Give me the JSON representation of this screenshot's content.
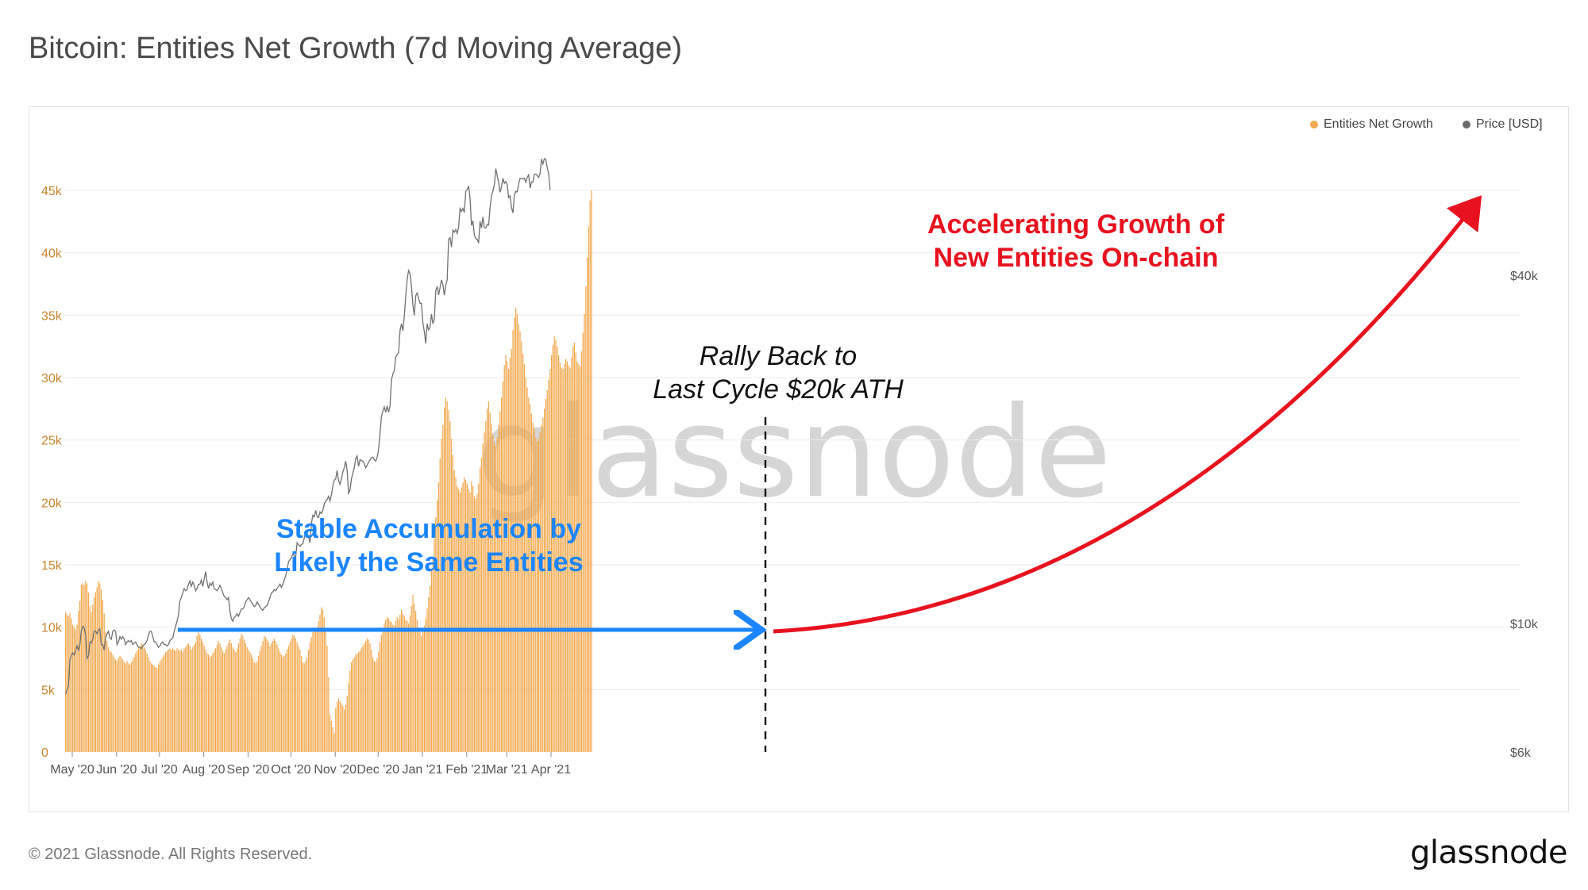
{
  "title": "Bitcoin: Entities Net Growth (7d Moving Average)",
  "footer": "© 2021 Glassnode. All Rights Reserved.",
  "logo": "glassnode",
  "watermark": "glassnode",
  "legend": [
    {
      "label": "Entities Net Growth",
      "color": "#f2a84c"
    },
    {
      "label": "Price [USD]",
      "color": "#6b6b6b"
    }
  ],
  "annotations": {
    "stable_line1": "Stable Accumulation by",
    "stable_line2": "Likely the Same Entities",
    "rally_line1": "Rally Back to",
    "rally_line2": "Last Cycle $20k ATH",
    "accel_line1": "Accelerating Growth of",
    "accel_line2": "New Entities On-chain"
  },
  "colors": {
    "bar": "#f2a84c",
    "price": "#6b6b6b",
    "blue": "#1a85ff",
    "red": "#e8121f",
    "left_axis": "#c9852e",
    "right_axis": "#555555"
  },
  "chart_data": {
    "type": "bar",
    "title": "Bitcoin: Entities Net Growth (7d Moving Average)",
    "x_ticks": [
      "May '20",
      "Jun '20",
      "Jul '20",
      "Aug '20",
      "Sep '20",
      "Oct '20",
      "Nov '20",
      "Dec '20",
      "Jan '21",
      "Feb '21",
      "Mar '21",
      "Apr '21"
    ],
    "x_tick_day": [
      5,
      36,
      66,
      97,
      128,
      158,
      189,
      219,
      250,
      281,
      309,
      340
    ],
    "left_axis": {
      "ticks": [
        "0",
        "5k",
        "10k",
        "15k",
        "20k",
        "25k",
        "30k",
        "35k",
        "40k",
        "45k"
      ],
      "ylim": [
        0,
        45000
      ]
    },
    "right_axis": {
      "ticks": [
        "$6k",
        "$10k",
        "$40k"
      ],
      "values": [
        6000,
        10000,
        40000
      ],
      "scale": "log"
    },
    "series": [
      {
        "name": "Entities Net Growth",
        "start_date": "2020-04-26",
        "values": [
          11200,
          11000,
          10900,
          11100,
          10700,
          10200,
          10000,
          9800,
          10200,
          11300,
          12100,
          13400,
          13500,
          13400,
          13700,
          13500,
          12800,
          11700,
          11200,
          11800,
          12400,
          12800,
          13200,
          13700,
          13500,
          13000,
          12200,
          11100,
          9600,
          8900,
          8400,
          8100,
          8000,
          7800,
          7600,
          7400,
          7300,
          7500,
          7700,
          7600,
          7400,
          7200,
          7100,
          7300,
          7100,
          7000,
          7200,
          7400,
          7600,
          7900,
          8100,
          8300,
          8500,
          8700,
          8600,
          8400,
          8200,
          7900,
          7600,
          7300,
          7100,
          7000,
          6900,
          6800,
          6700,
          7000,
          7200,
          7400,
          7600,
          7800,
          8000,
          8100,
          8200,
          8300,
          8200,
          8300,
          8200,
          8100,
          8300,
          8200,
          8100,
          8200,
          8000,
          8300,
          8400,
          8600,
          8700,
          8500,
          8200,
          8400,
          8600,
          8800,
          9300,
          9600,
          9400,
          9100,
          8800,
          8500,
          8200,
          7900,
          7800,
          7600,
          7700,
          7900,
          8100,
          8300,
          8600,
          8900,
          8700,
          8400,
          8100,
          7900,
          8200,
          8500,
          8800,
          9000,
          8700,
          8400,
          8200,
          8000,
          8300,
          8700,
          9100,
          9500,
          9300,
          9000,
          8700,
          8400,
          8200,
          8000,
          7800,
          7500,
          7200,
          7100,
          7300,
          7700,
          8100,
          8500,
          8900,
          9300,
          9200,
          9000,
          8800,
          8500,
          8700,
          8900,
          9100,
          8900,
          8600,
          8300,
          8000,
          7800,
          7600,
          7700,
          7900,
          8200,
          8500,
          8800,
          9100,
          9400,
          9300,
          9100,
          8800,
          8500,
          8200,
          7700,
          7200,
          7100,
          7300,
          7600,
          8200,
          8800,
          9200,
          9600,
          9700,
          9800,
          10000,
          10500,
          11000,
          11600,
          11400,
          10800,
          9900,
          8500,
          6000,
          3000,
          2500,
          2000,
          1500,
          3500,
          4000,
          4300,
          4100,
          3900,
          3700,
          3400,
          3800,
          4500,
          5500,
          6500,
          7200,
          7400,
          7600,
          7800,
          7900,
          8000,
          8100,
          8300,
          8500,
          8700,
          8900,
          9100,
          9000,
          8700,
          8200,
          7600,
          7300,
          7200,
          7500,
          8000,
          8800,
          9400,
          9800,
          10300,
          10600,
          10800,
          10700,
          10500,
          10400,
          10200,
          10100,
          10500,
          10800,
          10600,
          11000,
          11400,
          11100,
          10900,
          10600,
          10500,
          10300,
          10900,
          11700,
          12600,
          11900,
          11300,
          10600,
          10000,
          9600,
          9300,
          9600,
          10100,
          10700,
          11500,
          12400,
          13300,
          14500,
          15600,
          17100,
          18800,
          20200,
          21600,
          23500,
          25100,
          26200,
          27600,
          28400,
          28100,
          27400,
          26500,
          25100,
          23800,
          22600,
          22000,
          21300,
          21100,
          20800,
          21200,
          21600,
          22000,
          21800,
          21500,
          21100,
          20800,
          21700,
          21300,
          20500,
          20300,
          20700,
          21500,
          22800,
          23600,
          24700,
          25600,
          26500,
          27500,
          28100,
          27200,
          26300,
          25400,
          24800,
          24500,
          25200,
          26200,
          27300,
          28400,
          29700,
          31000,
          31800,
          31300,
          30700,
          31600,
          32300,
          33800,
          34800,
          35600,
          35100,
          34300,
          33700,
          32900,
          31900,
          31100,
          30000,
          29200,
          28400,
          27900,
          27100,
          26400,
          25900,
          25200,
          24900,
          25100,
          25600,
          26200,
          26800,
          27500,
          28300,
          29000,
          29800,
          30700,
          31800,
          32600,
          33300,
          33000,
          32500,
          31800,
          31200,
          30800,
          30700,
          31100,
          31500,
          31300,
          31000,
          30800,
          31600,
          32500,
          32800,
          32000,
          31300,
          31100,
          30900,
          32100,
          33600,
          35100,
          37300,
          39600,
          42100,
          44200,
          45000
        ]
      },
      {
        "name": "Price [USD]",
        "scale": "log",
        "start_date": "2020-04-26",
        "values": [
          7550,
          7690,
          7800,
          8650,
          8800,
          8900,
          8830,
          8990,
          9160,
          9000,
          9200,
          9700,
          9900,
          9850,
          9550,
          8700,
          8800,
          9300,
          9250,
          9400,
          9700,
          9700,
          9600,
          9750,
          9800,
          9200,
          9200,
          9000,
          9450,
          9600,
          9700,
          9450,
          9400,
          9700,
          9750,
          9700,
          9200,
          9300,
          9500,
          9400,
          9500,
          9400,
          9200,
          9300,
          9350,
          9300,
          9350,
          9200,
          9250,
          9300,
          9200,
          9100,
          9100,
          9050,
          9150,
          9200,
          9250,
          9350,
          9550,
          9700,
          9700,
          9500,
          9300,
          9300,
          9200,
          9100,
          9150,
          9250,
          9300,
          9200,
          9200,
          9150,
          9200,
          9350,
          9400,
          9450,
          9700,
          9900,
          10100,
          10350,
          10950,
          11100,
          11300,
          11500,
          11400,
          11450,
          11700,
          11850,
          11600,
          11800,
          11650,
          11400,
          11500,
          11700,
          11700,
          11900,
          11600,
          11950,
          12300,
          11800,
          11500,
          11750,
          11650,
          11800,
          11500,
          11450,
          11400,
          11500,
          11650,
          11500,
          11300,
          11150,
          11100,
          11000,
          11100,
          10500,
          10200,
          10100,
          10250,
          10300,
          10400,
          10300,
          10450,
          10600,
          10600,
          10700,
          10900,
          11000,
          11100,
          11000,
          10900,
          10800,
          10700,
          10750,
          10900,
          10800,
          10700,
          10600,
          10550,
          10650,
          10700,
          10750,
          10900,
          11100,
          11300,
          11350,
          11450,
          11400,
          11500,
          11600,
          11700,
          11550,
          11700,
          11900,
          12100,
          12400,
          12800,
          12900,
          13000,
          13200,
          13100,
          13050,
          13800,
          13700,
          13600,
          13700,
          13750,
          14050,
          14300,
          14300,
          14150,
          13800,
          14900,
          15400,
          15300,
          15700,
          15300,
          15250,
          15600,
          15500,
          15700,
          16100,
          16300,
          16400,
          16600,
          16300,
          16700,
          17300,
          17700,
          17800,
          18400,
          17700,
          17400,
          17800,
          18300,
          18600,
          19100,
          18400,
          16800,
          17000,
          17800,
          18200,
          18600,
          19300,
          19500,
          18700,
          19200,
          19150,
          19100,
          18900,
          18600,
          18800,
          19000,
          19200,
          19350,
          19400,
          19200,
          19100,
          19400,
          20000,
          21300,
          22800,
          23300,
          23700,
          23200,
          23800,
          23200,
          23800,
          26400,
          27000,
          27400,
          28900,
          29200,
          29400,
          32100,
          33000,
          32100,
          34000,
          36800,
          39400,
          40800,
          40300,
          38300,
          35600,
          34100,
          36900,
          37300,
          36500,
          35800,
          35800,
          33100,
          32000,
          30500,
          33000,
          32200,
          32500,
          34300,
          33000,
          33600,
          37600,
          38300,
          37000,
          38100,
          39300,
          38600,
          37000,
          38400,
          39300,
          46200,
          46500,
          44800,
          47900,
          47500,
          48000,
          47300,
          48500,
          52200,
          51600,
          52200,
          51400,
          55900,
          56300,
          57100,
          54400,
          48800,
          49700,
          47000,
          46300,
          46200,
          45500,
          49600,
          48300,
          50500,
          48400,
          48300,
          49000,
          48900,
          52400,
          54900,
          56000,
          57400,
          61200,
          59500,
          58000,
          55700,
          56900,
          58900,
          57700,
          58100,
          57400,
          54500,
          54900,
          52400,
          51300,
          55100,
          55900,
          55800,
          57600,
          58900,
          58800,
          58700,
          58900,
          58000,
          59100,
          59700,
          56600,
          58000,
          58000,
          59800,
          59900,
          59500,
          59100,
          60000,
          63600,
          62300,
          63700,
          63500,
          61400,
          60000,
          56200
        ]
      }
    ]
  }
}
